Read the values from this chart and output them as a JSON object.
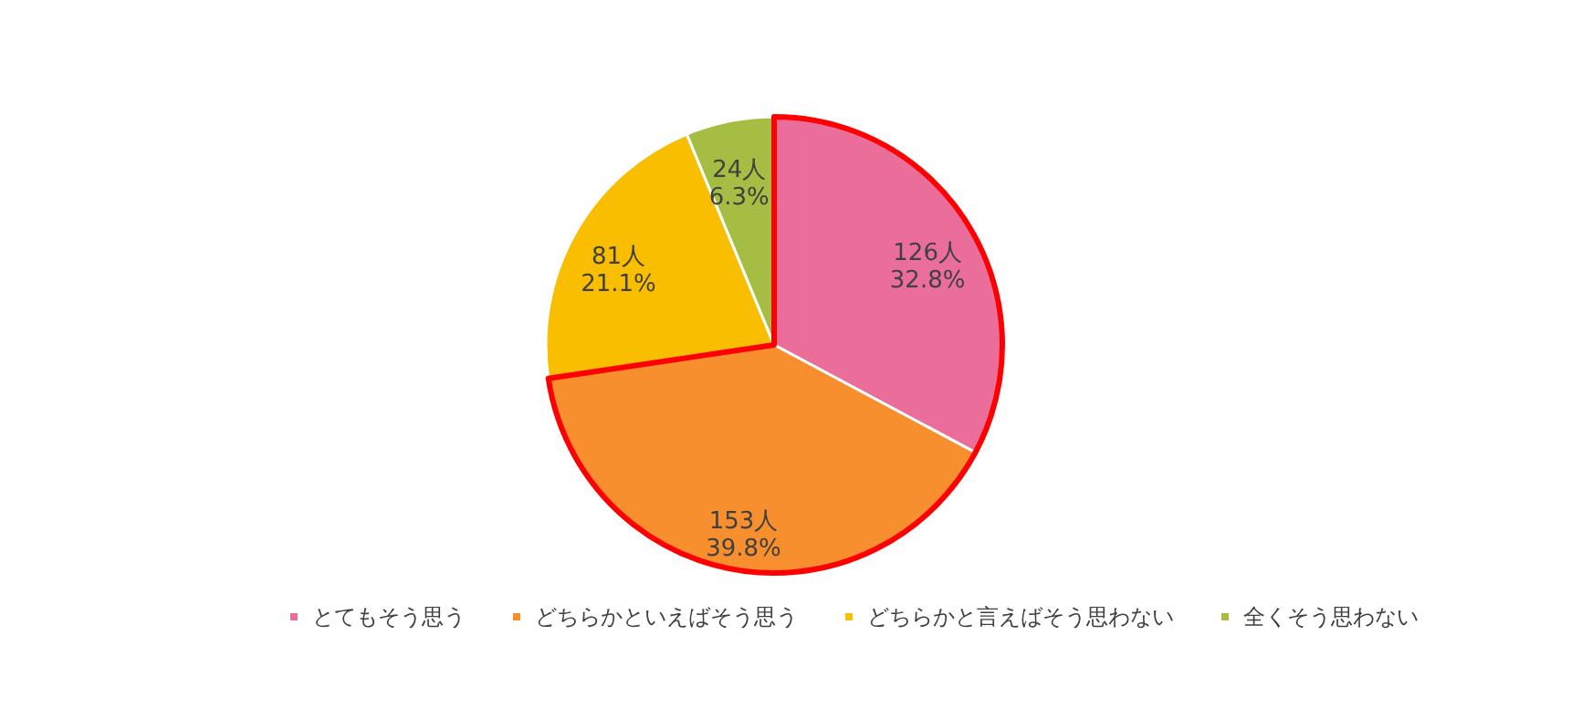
{
  "chart_data": {
    "type": "pie",
    "categories": [
      "とてもそう思う",
      "どちらかといえばそう思う",
      "どちらかと言えばそう思わない",
      "全くそう思わない"
    ],
    "values": [
      126,
      153,
      81,
      24
    ],
    "colors": [
      "#eb6e9a",
      "#f78f2e",
      "#fabe00",
      "#a4bd42"
    ],
    "value_labels": [
      "126人\n32.8%",
      "153人\n39.8%",
      "81人\n21.1%",
      "24人\n6.3%"
    ],
    "legend": "bottom"
  }
}
